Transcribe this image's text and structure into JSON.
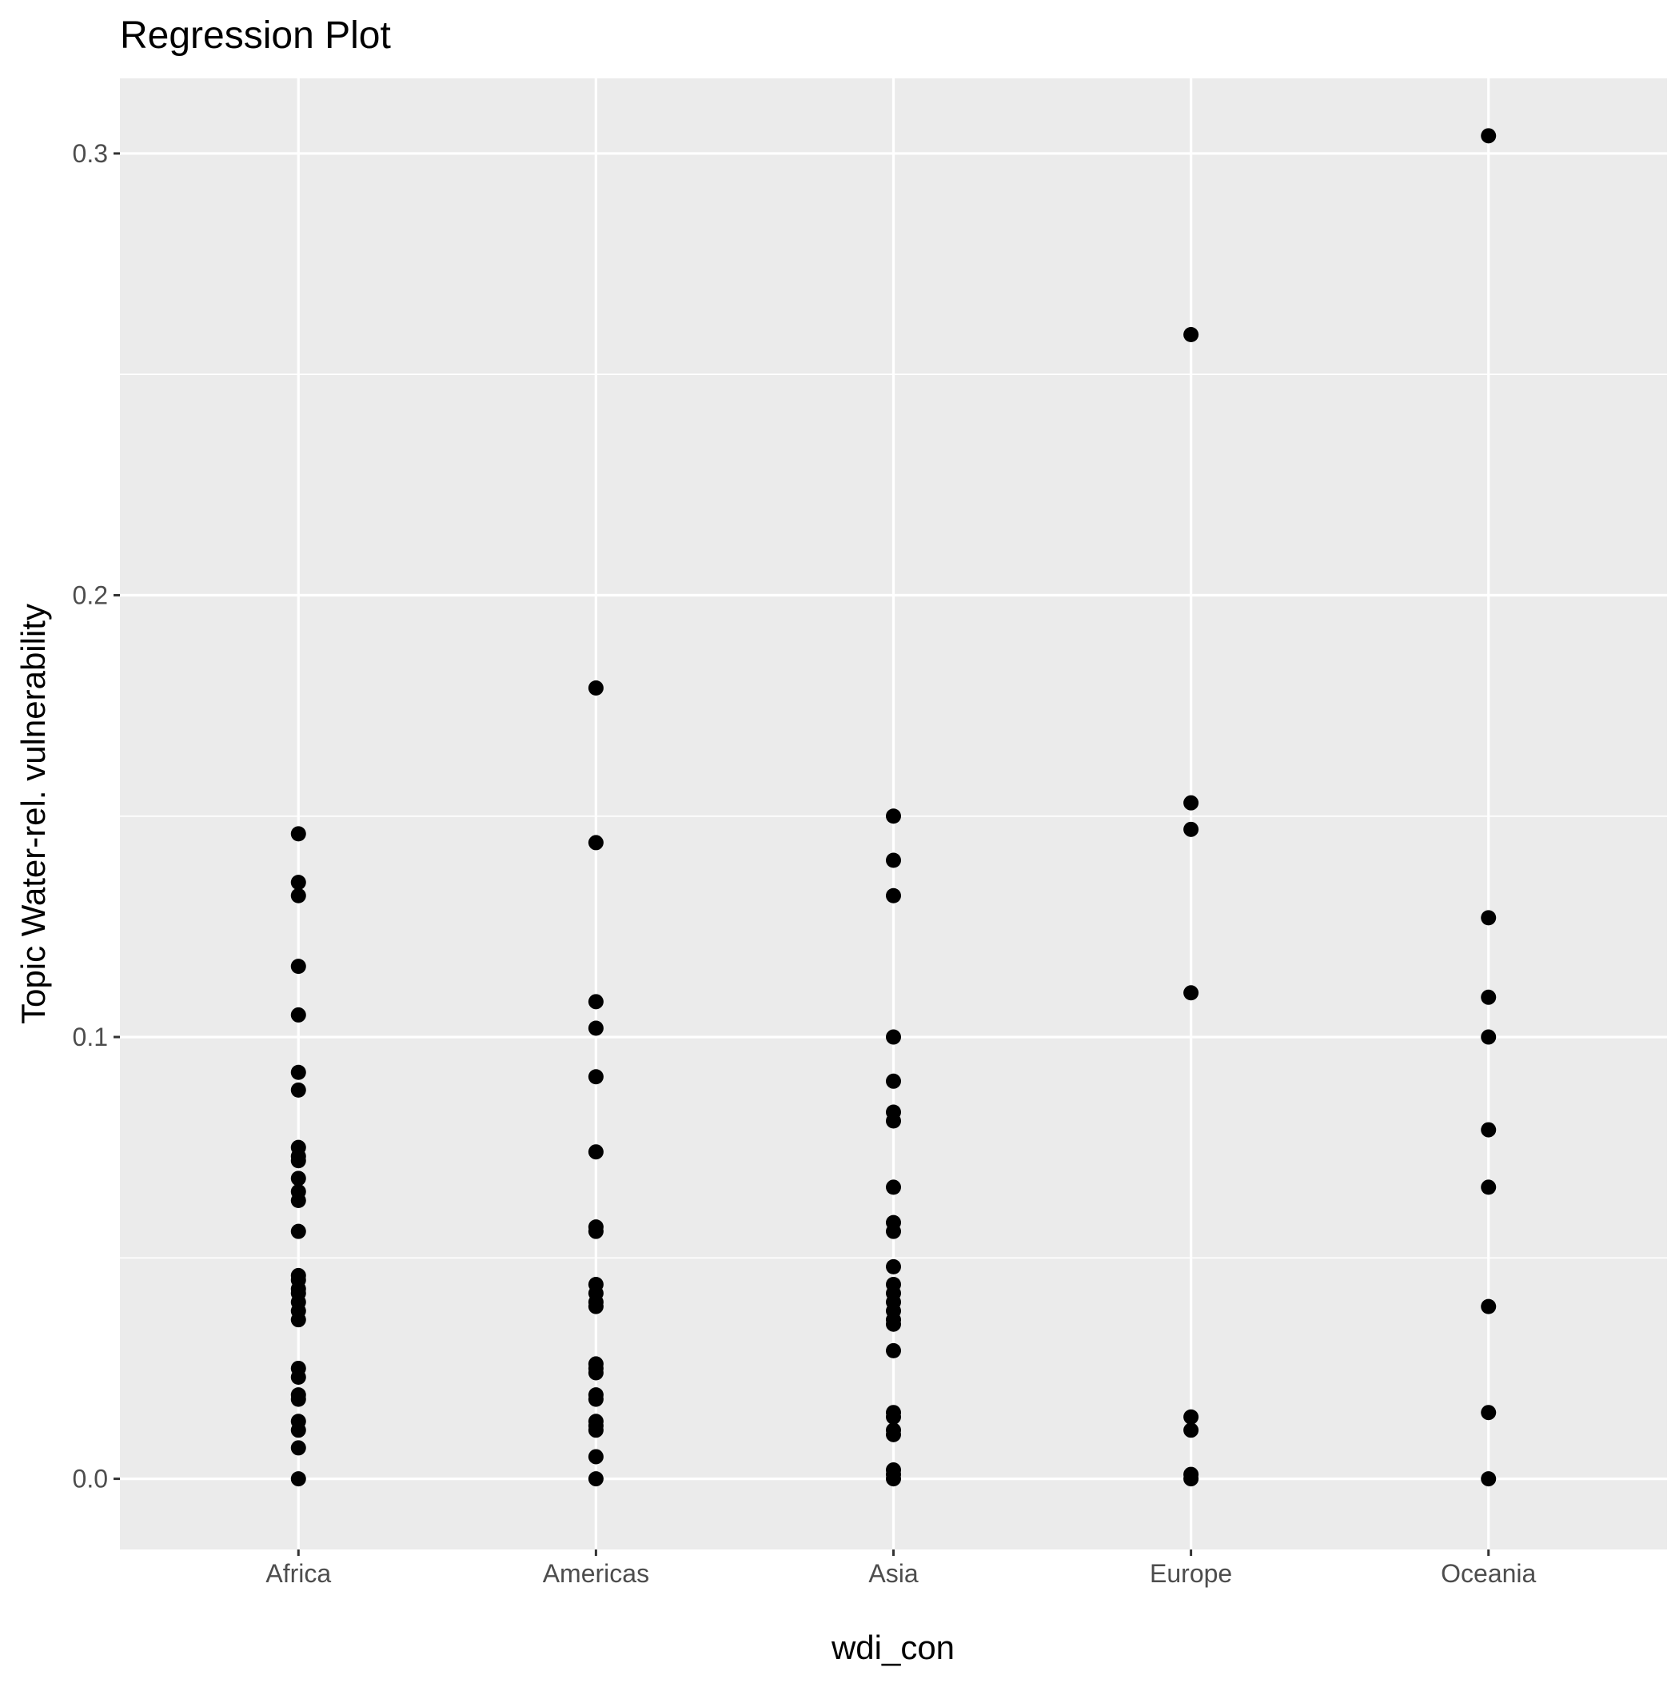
{
  "chart_data": {
    "type": "scatter",
    "title": "Regression Plot",
    "xlabel": "wdi_con",
    "ylabel": "Topic Water-rel. vulnerability",
    "categories": [
      "Africa",
      "Americas",
      "Asia",
      "Europe",
      "Oceania"
    ],
    "y_ticks": [
      {
        "value": 0.0,
        "label": "0.0"
      },
      {
        "value": 0.1,
        "label": "0.1"
      },
      {
        "value": 0.2,
        "label": "0.2"
      },
      {
        "value": 0.3,
        "label": "0.3"
      }
    ],
    "ylim": [
      -0.016,
      0.317
    ],
    "grid": true,
    "legend": "none",
    "colors": {
      "panel": "#ebebeb",
      "grid": "#ffffff",
      "point": "#000000"
    },
    "points": {
      "Africa": [
        0.146,
        0.135,
        0.132,
        0.116,
        0.105,
        0.092,
        0.088,
        0.075,
        0.073,
        0.072,
        0.068,
        0.065,
        0.063,
        0.056,
        0.046,
        0.045,
        0.043,
        0.042,
        0.04,
        0.038,
        0.036,
        0.025,
        0.023,
        0.019,
        0.018,
        0.013,
        0.011,
        0.007,
        0.0
      ],
      "Americas": [
        0.179,
        0.144,
        0.108,
        0.102,
        0.091,
        0.074,
        0.057,
        0.056,
        0.044,
        0.042,
        0.04,
        0.039,
        0.026,
        0.025,
        0.024,
        0.019,
        0.018,
        0.013,
        0.012,
        0.011,
        0.005,
        0.0
      ],
      "Asia": [
        0.15,
        0.14,
        0.132,
        0.1,
        0.09,
        0.083,
        0.081,
        0.066,
        0.058,
        0.056,
        0.048,
        0.044,
        0.042,
        0.04,
        0.038,
        0.036,
        0.035,
        0.029,
        0.015,
        0.014,
        0.011,
        0.01,
        0.002,
        0.001,
        0.0
      ],
      "Europe": [
        0.259,
        0.153,
        0.147,
        0.11,
        0.014,
        0.011,
        0.001,
        0.0
      ],
      "Oceania": [
        0.304,
        0.127,
        0.109,
        0.1,
        0.079,
        0.066,
        0.039,
        0.015,
        0.0
      ]
    }
  }
}
